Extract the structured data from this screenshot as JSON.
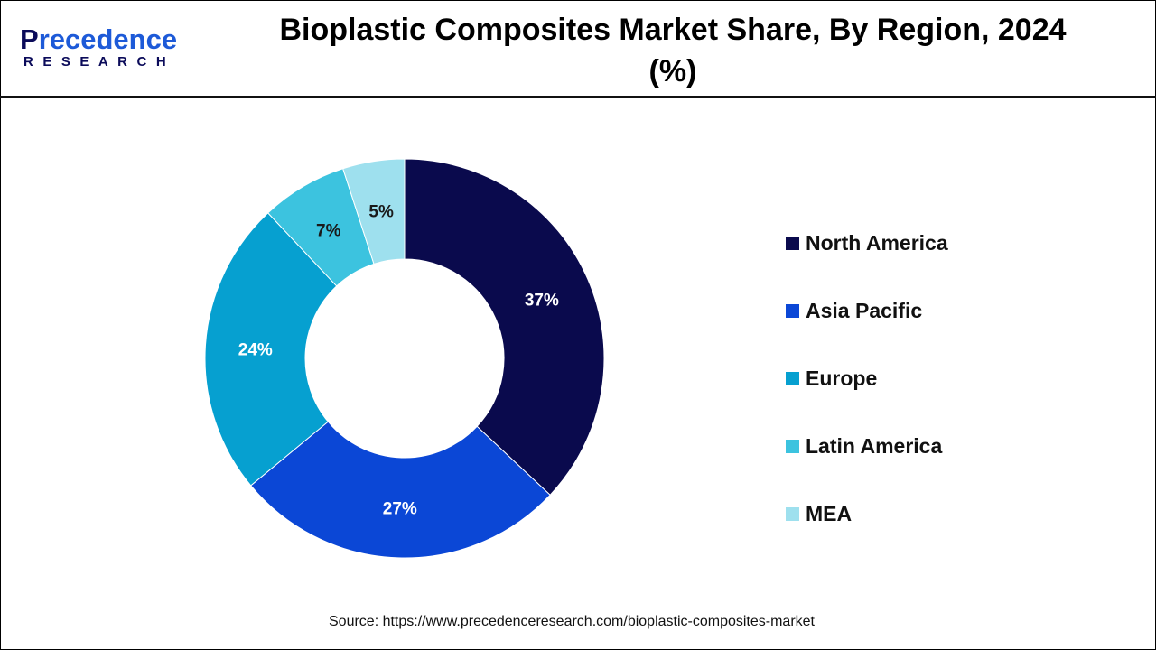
{
  "logo": {
    "brand_prefix": "P",
    "brand_rest": "recedence",
    "sub": "RESEARCH"
  },
  "chart_data": {
    "type": "pie",
    "donut": true,
    "title": "Bioplastic Composites Market  Share, By Region, 2024 (%)",
    "categories": [
      "North America",
      "Asia Pacific",
      "Europe",
      "Latin America",
      "MEA"
    ],
    "values": [
      37,
      27,
      24,
      7,
      5
    ],
    "data_labels": [
      "37%",
      "27%",
      "24%",
      "7%",
      "5%"
    ],
    "colors": [
      "#0a0a4d",
      "#0b47d6",
      "#06a0d0",
      "#3cc3df",
      "#9ee0ee"
    ],
    "legend_placement": "right"
  },
  "source": "Source: https://www.precedenceresearch.com/bioplastic-composites-market"
}
